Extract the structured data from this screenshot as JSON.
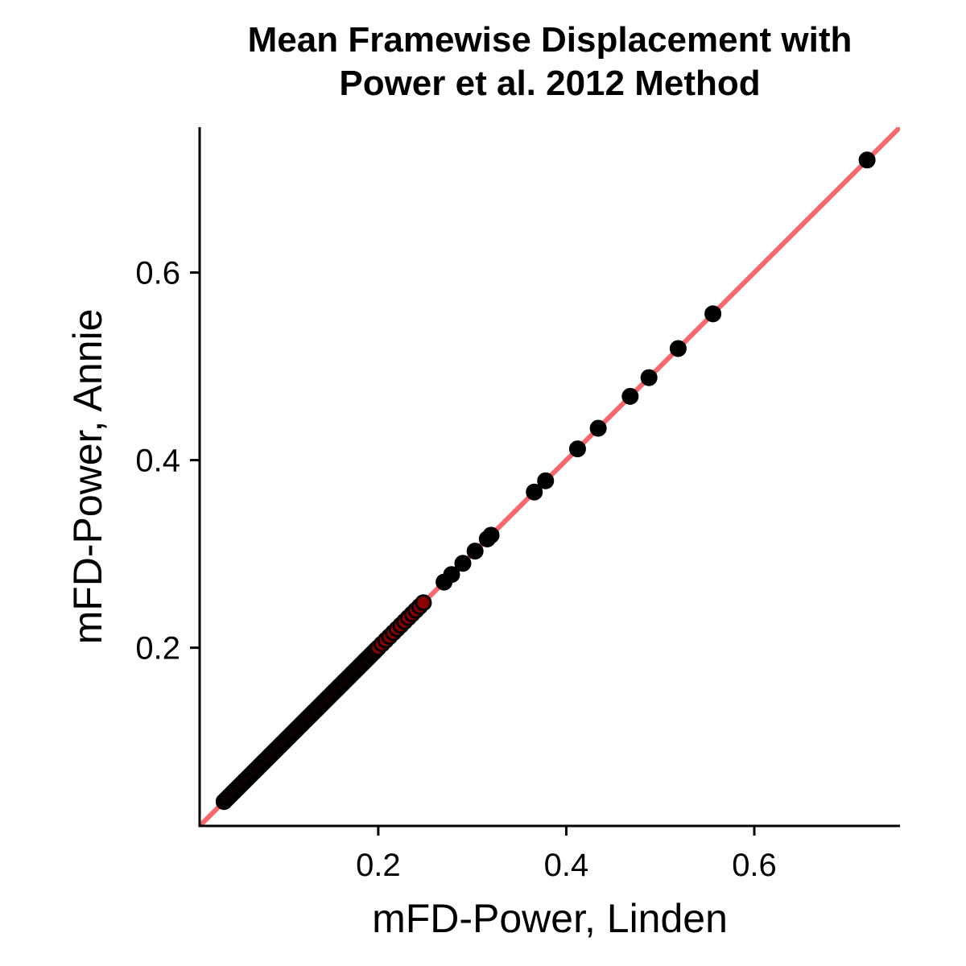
{
  "chart_data": {
    "type": "scatter",
    "title_lines": [
      "Mean Framewise Displacement with",
      "Power et al. 2012 Method"
    ],
    "xlabel": "mFD-Power, Linden",
    "ylabel": "mFD-Power, Annie",
    "xlim": [
      0.01,
      0.755
    ],
    "ylim": [
      0.01,
      0.755
    ],
    "xticks": [
      0.2,
      0.4,
      0.6
    ],
    "yticks": [
      0.2,
      0.4,
      0.6
    ],
    "xtick_labels": [
      "0.2",
      "0.4",
      "0.6"
    ],
    "ytick_labels": [
      "0.2",
      "0.4",
      "0.6"
    ],
    "grid": false,
    "legend": "none",
    "reference_line": {
      "slope": 1,
      "intercept": 0,
      "color": "#f8676b"
    },
    "point_color": "#000000",
    "dense_point_color": "#8b0000",
    "series": [
      {
        "x": [
          0.036,
          0.038,
          0.04,
          0.042,
          0.044,
          0.046,
          0.048,
          0.05,
          0.052,
          0.054,
          0.056,
          0.058,
          0.06,
          0.062,
          0.064,
          0.066,
          0.068,
          0.07,
          0.072,
          0.074,
          0.076,
          0.078,
          0.08,
          0.082,
          0.084,
          0.086,
          0.088,
          0.09,
          0.092,
          0.094,
          0.096,
          0.098,
          0.1,
          0.102,
          0.104,
          0.106,
          0.108,
          0.11,
          0.112,
          0.114,
          0.116,
          0.118,
          0.12,
          0.122,
          0.124,
          0.126,
          0.128,
          0.13,
          0.132,
          0.134,
          0.136,
          0.138,
          0.14,
          0.142,
          0.144,
          0.146,
          0.148,
          0.15,
          0.152,
          0.154,
          0.156,
          0.158,
          0.16,
          0.162,
          0.164,
          0.166,
          0.168,
          0.17,
          0.172,
          0.174,
          0.176,
          0.178,
          0.18,
          0.182,
          0.184,
          0.186,
          0.188,
          0.19,
          0.192,
          0.194,
          0.196,
          0.198,
          0.2,
          0.204,
          0.208,
          0.212,
          0.216,
          0.22,
          0.224,
          0.228,
          0.232,
          0.236,
          0.24,
          0.244,
          0.248,
          0.27,
          0.278,
          0.29,
          0.303,
          0.316,
          0.32,
          0.366,
          0.378,
          0.412,
          0.434,
          0.468,
          0.488,
          0.519,
          0.556,
          0.72
        ],
        "y": [
          0.036,
          0.038,
          0.04,
          0.042,
          0.044,
          0.046,
          0.048,
          0.05,
          0.052,
          0.054,
          0.056,
          0.058,
          0.06,
          0.062,
          0.064,
          0.066,
          0.068,
          0.07,
          0.072,
          0.074,
          0.076,
          0.078,
          0.08,
          0.082,
          0.084,
          0.086,
          0.088,
          0.09,
          0.092,
          0.094,
          0.096,
          0.098,
          0.1,
          0.102,
          0.104,
          0.106,
          0.108,
          0.11,
          0.112,
          0.114,
          0.116,
          0.118,
          0.12,
          0.122,
          0.124,
          0.126,
          0.128,
          0.13,
          0.132,
          0.134,
          0.136,
          0.138,
          0.14,
          0.142,
          0.144,
          0.146,
          0.148,
          0.15,
          0.152,
          0.154,
          0.156,
          0.158,
          0.16,
          0.162,
          0.164,
          0.166,
          0.168,
          0.17,
          0.172,
          0.174,
          0.176,
          0.178,
          0.18,
          0.182,
          0.184,
          0.186,
          0.188,
          0.19,
          0.192,
          0.194,
          0.196,
          0.198,
          0.2,
          0.204,
          0.208,
          0.212,
          0.216,
          0.22,
          0.224,
          0.228,
          0.232,
          0.236,
          0.24,
          0.244,
          0.248,
          0.27,
          0.278,
          0.29,
          0.303,
          0.316,
          0.32,
          0.366,
          0.378,
          0.412,
          0.434,
          0.468,
          0.488,
          0.519,
          0.556,
          0.72
        ]
      }
    ]
  }
}
